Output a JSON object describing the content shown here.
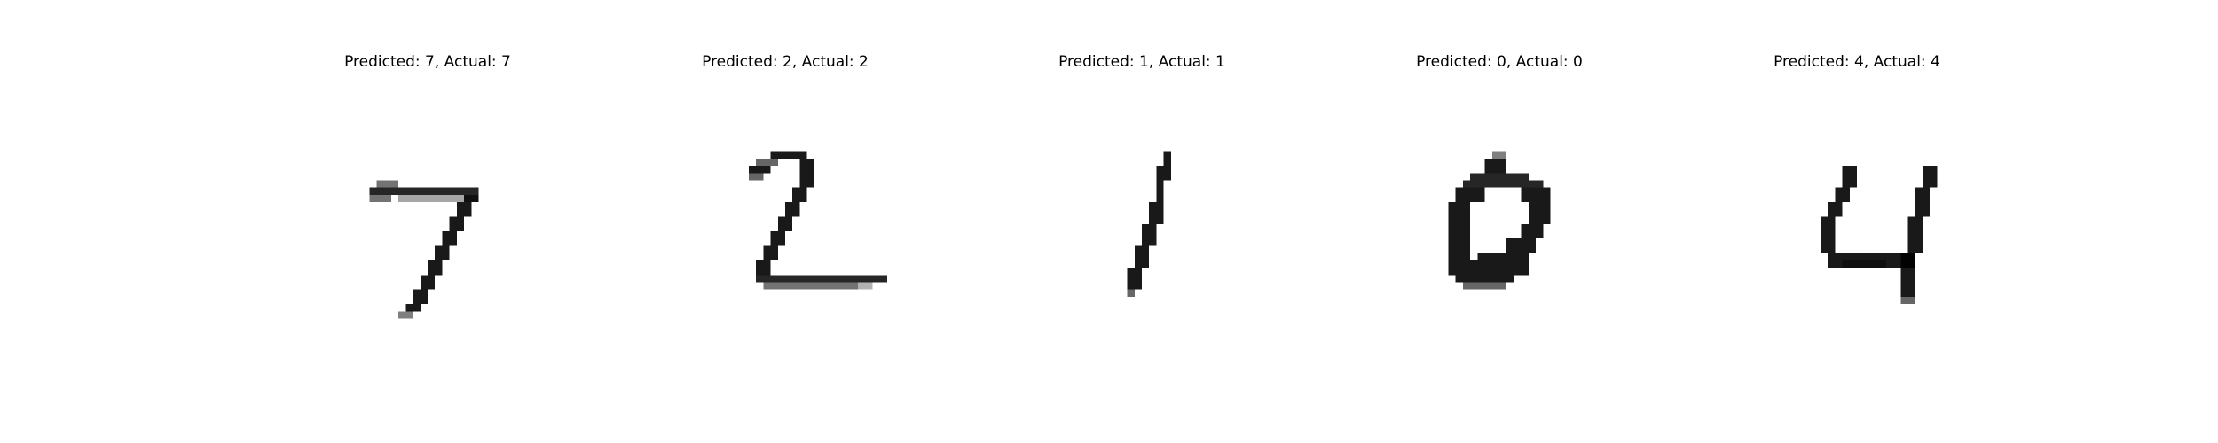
{
  "colors": {
    "background": "#ffffff",
    "ink": "#000000"
  },
  "panels": [
    {
      "title": "Predicted: 7, Actual: 7",
      "image": {
        "kind": "grayscale-digit-image",
        "depicts": "7"
      }
    },
    {
      "title": "Predicted: 2, Actual: 2",
      "image": {
        "kind": "grayscale-digit-image",
        "depicts": "2"
      }
    },
    {
      "title": "Predicted: 1, Actual: 1",
      "image": {
        "kind": "grayscale-digit-image",
        "depicts": "1"
      }
    },
    {
      "title": "Predicted: 0, Actual: 0",
      "image": {
        "kind": "grayscale-digit-image",
        "depicts": "0"
      }
    },
    {
      "title": "Predicted: 4, Actual: 4",
      "image": {
        "kind": "grayscale-digit-image",
        "depicts": "4"
      }
    }
  ]
}
